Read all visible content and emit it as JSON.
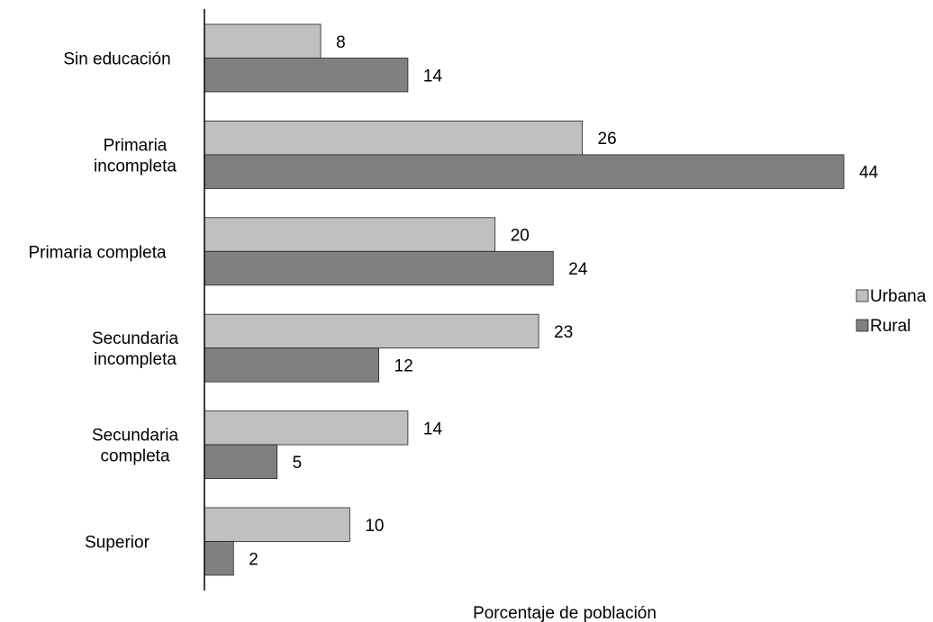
{
  "chart_data": {
    "type": "bar",
    "orientation": "horizontal",
    "categories": [
      [
        "Sin educación"
      ],
      [
        "Primaria",
        "incompleta"
      ],
      [
        "Primaria completa"
      ],
      [
        "Secundaria",
        "incompleta"
      ],
      [
        "Secundaria",
        "completa"
      ],
      [
        "Superior"
      ]
    ],
    "series": [
      {
        "name": "Urbana",
        "color": "#c0c0c0",
        "values": [
          8,
          26,
          20,
          23,
          14,
          10
        ]
      },
      {
        "name": "Rural",
        "color": "#808080",
        "values": [
          14,
          44,
          24,
          12,
          5,
          2
        ]
      }
    ],
    "xlabel": "Porcentaje de población",
    "xlim": [
      0,
      44
    ],
    "grid": false,
    "legend": "right"
  }
}
